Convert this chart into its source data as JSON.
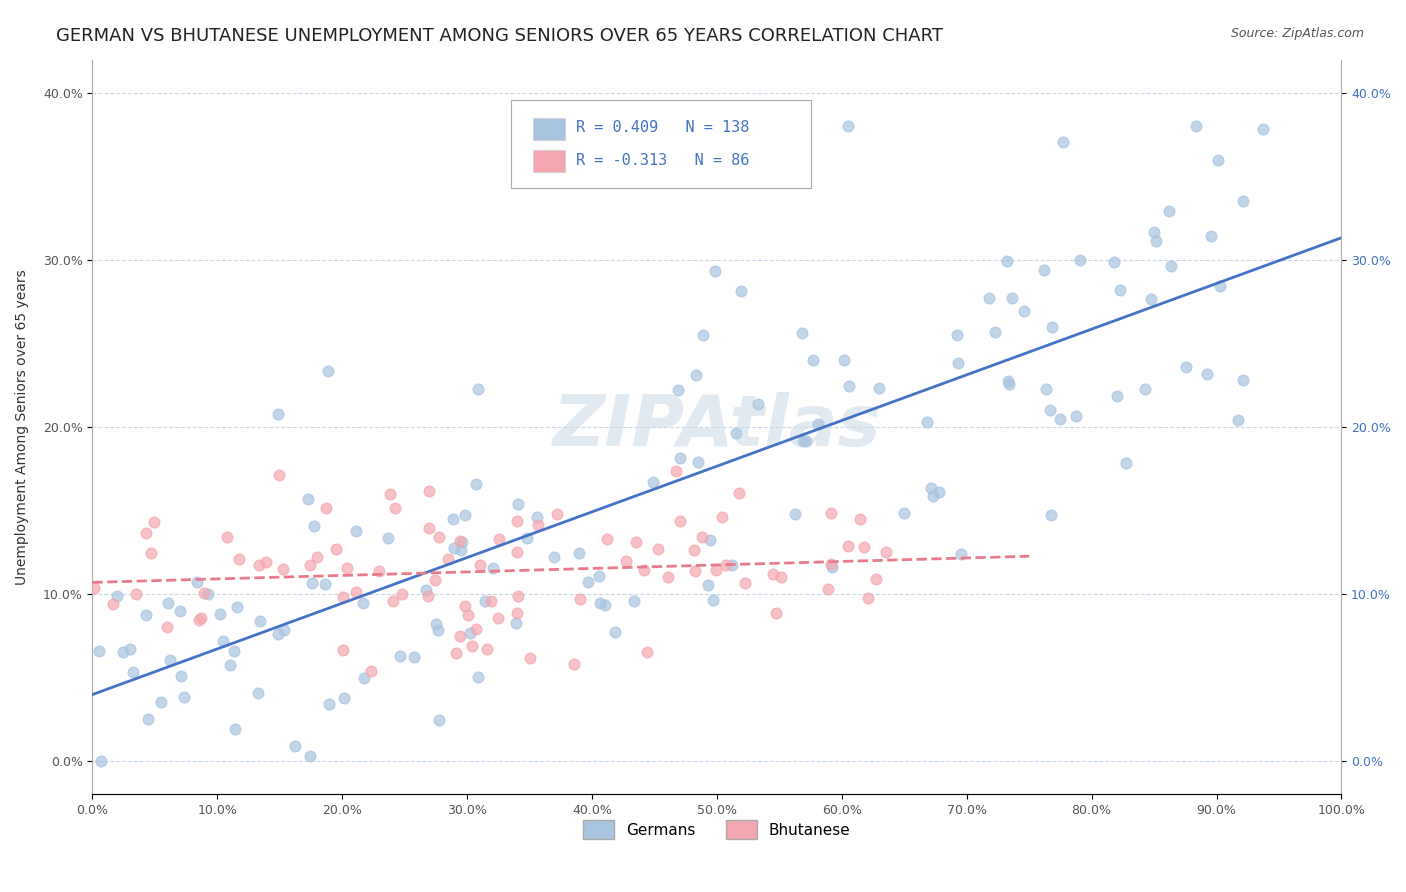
{
  "title": "GERMAN VS BHUTANESE UNEMPLOYMENT AMONG SENIORS OVER 65 YEARS CORRELATION CHART",
  "source": "Source: ZipAtlas.com",
  "ylabel": "Unemployment Among Seniors over 65 years",
  "xlabel": "",
  "xlim": [
    0,
    1.0
  ],
  "ylim": [
    -0.02,
    0.42
  ],
  "xticks": [
    0.0,
    0.1,
    0.2,
    0.3,
    0.4,
    0.5,
    0.6,
    0.7,
    0.8,
    0.9,
    1.0
  ],
  "xticklabels": [
    "0.0%",
    "10.0%",
    "20.0%",
    "30.0%",
    "40.0%",
    "50.0%",
    "60.0%",
    "70.0%",
    "80.0%",
    "90.0%",
    "100.0%"
  ],
  "yticks": [
    0.0,
    0.1,
    0.2,
    0.3,
    0.4
  ],
  "yticklabels": [
    "0.0%",
    "10.0%",
    "20.0%",
    "30.0%",
    "40.0%"
  ],
  "german_R": 0.409,
  "german_N": 138,
  "bhutanese_R": -0.313,
  "bhutanese_N": 86,
  "german_color": "#a8c4e0",
  "bhutanese_color": "#f4a7b0",
  "german_line_color": "#4472c4",
  "bhutanese_line_color": "#e87a8a",
  "legend_R_color": "#4472c4",
  "legend_N_color": "#e05050",
  "background_color": "#ffffff",
  "grid_color": "#c8d8e8",
  "watermark": "ZIPAtlas",
  "watermark_color": "#d0dce8",
  "title_fontsize": 13,
  "axis_label_fontsize": 10,
  "tick_fontsize": 9,
  "german_seed": 42,
  "bhutanese_seed": 7
}
